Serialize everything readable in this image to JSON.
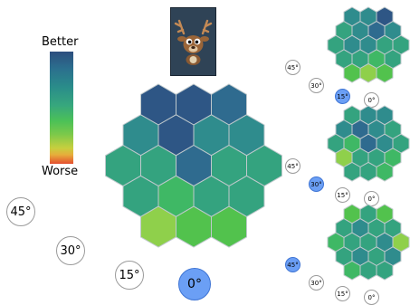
{
  "legend": {
    "top_label": "Better",
    "bottom_label": "Worse"
  },
  "card": {
    "icon": "reindeer-icon"
  },
  "angles": {
    "a45": "45°",
    "a30": "30°",
    "a15": "15°",
    "a0": "0°"
  },
  "selected_angle": {
    "main": "0°",
    "panel_top": "15°",
    "panel_mid": "30°",
    "panel_bottom": "45°"
  },
  "colors": {
    "better": "#2d4e7e",
    "worse": "#e44e2f",
    "selected": "#6b9ff5"
  }
}
